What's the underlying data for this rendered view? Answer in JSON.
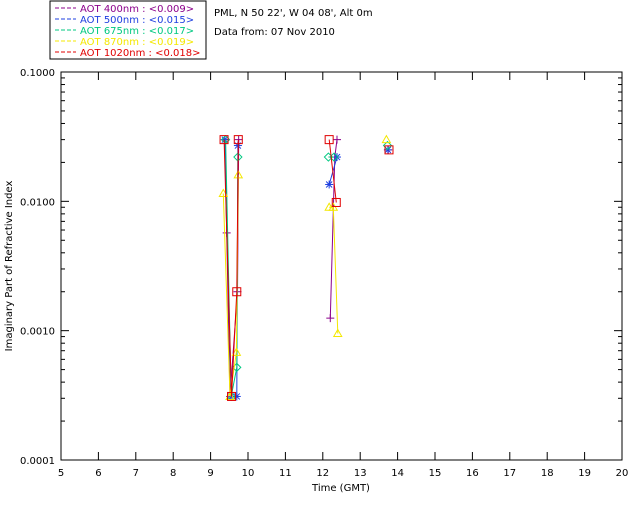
{
  "chart_data": {
    "type": "line",
    "header_lines": [
      "PML, N 50 22', W 04 08', Alt 0m",
      "Data from: 07 Nov 2010"
    ],
    "xlabel": "Time (GMT)",
    "ylabel": "Imaginary Part of Refractive Index",
    "xlim": [
      5,
      20
    ],
    "ylim": [
      0.0001,
      0.1
    ],
    "yscale": "log",
    "x_ticks": [
      "5",
      "6",
      "7",
      "8",
      "9",
      "10",
      "11",
      "12",
      "13",
      "14",
      "15",
      "16",
      "17",
      "18",
      "19",
      "20"
    ],
    "y_ticks": [
      {
        "value": 0.1,
        "label": "0.1000"
      },
      {
        "value": 0.01,
        "label": "0.0100"
      },
      {
        "value": 0.001,
        "label": "0.0010"
      },
      {
        "value": 0.0001,
        "label": "0.0001"
      }
    ],
    "grid": false,
    "legend_position": "top-left",
    "series": [
      {
        "name": "AOT  400nm : <0.009>",
        "color": "#8B008B",
        "marker": "plus",
        "points": [
          [
            9.38,
            0.03
          ],
          [
            9.43,
            0.0057
          ],
          [
            9.52,
            0.00031
          ],
          [
            9.72,
            0.002
          ],
          [
            9.75,
            0.03
          ],
          null,
          [
            12.2,
            0.00125
          ],
          [
            12.32,
            0.022
          ],
          [
            12.38,
            0.03
          ],
          null,
          [
            13.75,
            0.025
          ]
        ]
      },
      {
        "name": "AOT  500nm : <0.015>",
        "color": "#1E3FE0",
        "marker": "asterisk",
        "points": [
          [
            9.38,
            0.03
          ],
          [
            9.55,
            0.00031
          ],
          [
            9.7,
            0.00031
          ],
          [
            9.73,
            0.027
          ],
          null,
          [
            12.17,
            0.0135
          ],
          [
            12.38,
            0.022
          ],
          null,
          [
            13.74,
            0.025
          ]
        ]
      },
      {
        "name": "AOT  675nm : <0.017>",
        "color": "#00C880",
        "marker": "diamond",
        "points": [
          [
            9.4,
            0.03
          ],
          [
            9.55,
            0.00031
          ],
          [
            9.7,
            0.00052
          ],
          [
            9.73,
            0.022
          ],
          null,
          [
            12.15,
            0.022
          ],
          [
            12.3,
            0.022
          ],
          null,
          [
            13.73,
            0.027
          ]
        ]
      },
      {
        "name": "AOT  870nm : <0.019>",
        "color": "#F4E800",
        "marker": "triangle",
        "points": [
          [
            9.34,
            0.0115
          ],
          [
            9.52,
            0.00031
          ],
          [
            9.69,
            0.00068
          ],
          [
            9.74,
            0.016
          ],
          null,
          [
            12.17,
            0.009
          ],
          [
            12.28,
            0.009
          ],
          [
            12.4,
            0.00095
          ],
          null,
          [
            13.7,
            0.03
          ]
        ]
      },
      {
        "name": "AOT 1020nm : <0.018>",
        "color": "#E00000",
        "marker": "square",
        "points": [
          [
            9.36,
            0.03
          ],
          [
            9.56,
            0.00031
          ],
          [
            9.7,
            0.002
          ],
          [
            9.74,
            0.03
          ],
          null,
          [
            12.17,
            0.03
          ],
          [
            12.36,
            0.0098
          ],
          null,
          [
            13.77,
            0.025
          ]
        ]
      }
    ]
  }
}
